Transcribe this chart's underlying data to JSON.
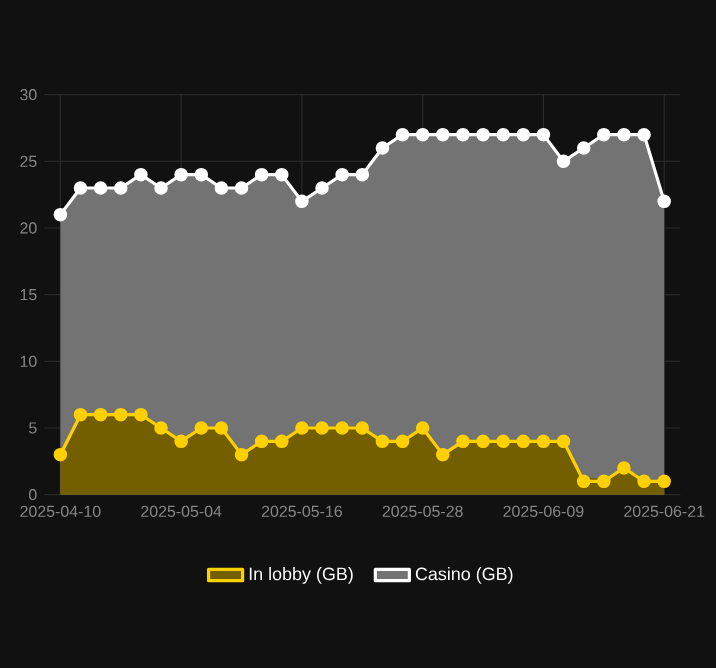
{
  "chart_data": {
    "type": "area",
    "categories": [
      "2025-04-10",
      null,
      null,
      null,
      null,
      null,
      "2025-05-04",
      null,
      null,
      null,
      null,
      null,
      "2025-05-16",
      null,
      null,
      null,
      null,
      null,
      "2025-05-28",
      null,
      null,
      null,
      null,
      null,
      "2025-06-09",
      null,
      null,
      null,
      null,
      null,
      "2025-06-21"
    ],
    "series": [
      {
        "name": "In lobby (GB)",
        "color": "#ffd000",
        "values": [
          3,
          6,
          6,
          6,
          6,
          5,
          4,
          5,
          5,
          3,
          4,
          4,
          5,
          5,
          5,
          5,
          4,
          4,
          5,
          3,
          4,
          4,
          4,
          4,
          4,
          4,
          1,
          1,
          2,
          1,
          1
        ]
      },
      {
        "name": "Casino (GB)",
        "color": "#ffffff",
        "values": [
          21,
          23,
          23,
          23,
          24,
          23,
          24,
          24,
          23,
          23,
          24,
          24,
          22,
          23,
          24,
          24,
          26,
          27,
          27,
          27,
          27,
          27,
          27,
          27,
          27,
          25,
          26,
          27,
          27,
          27,
          22
        ]
      }
    ],
    "ylim": [
      0,
      30
    ],
    "yticks": [
      0,
      5,
      10,
      15,
      20,
      25,
      30
    ],
    "grid": true,
    "legend": "bottom",
    "marker": "circle",
    "line_style": "solid"
  }
}
